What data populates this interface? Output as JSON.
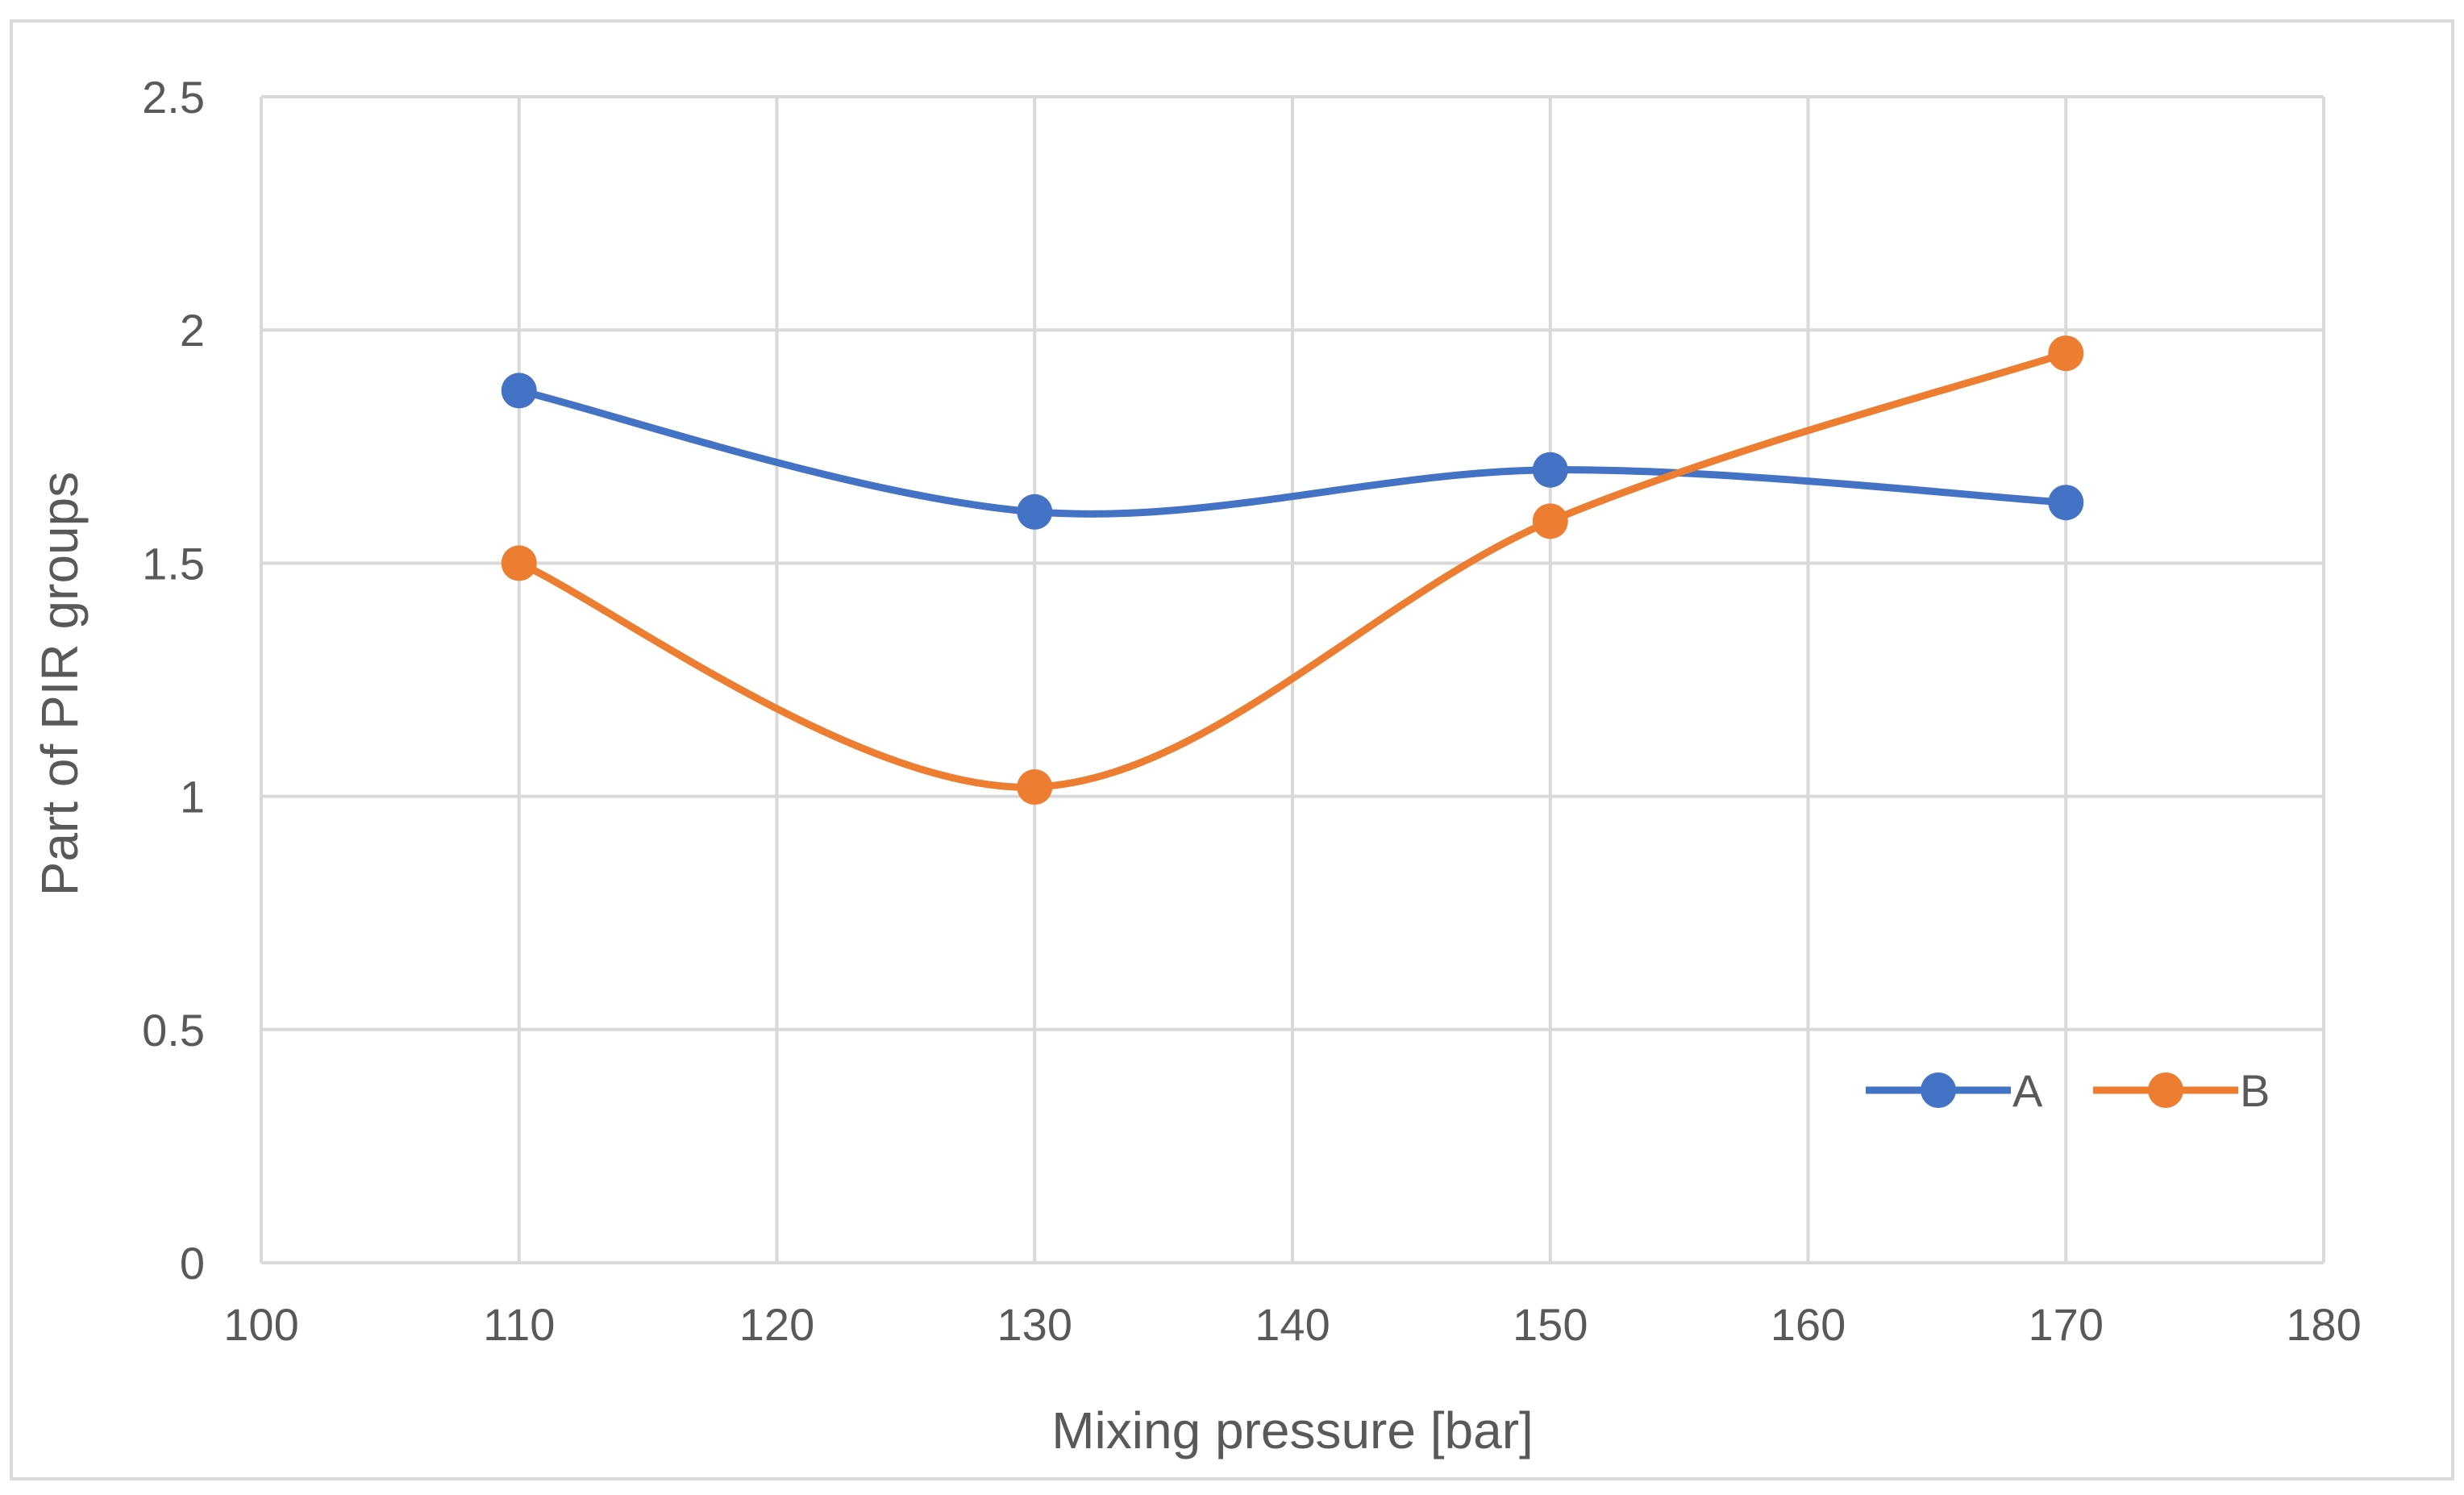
{
  "chart_data": {
    "type": "line",
    "title": "",
    "xlabel": "Mixing pressure [bar]",
    "ylabel": "Part of PIR groups",
    "xlim": [
      100,
      180
    ],
    "ylim": [
      0,
      2.5
    ],
    "x_ticks": [
      "100",
      "110",
      "120",
      "130",
      "140",
      "150",
      "160",
      "170",
      "180"
    ],
    "y_ticks": [
      "0",
      "0.5",
      "1",
      "1.5",
      "2",
      "2.5"
    ],
    "grid": true,
    "smooth": true,
    "legend_position": "bottom-right",
    "series": [
      {
        "name": "A",
        "color": "#4472C4",
        "x": [
          110,
          130,
          150,
          170
        ],
        "y": [
          1.87,
          1.61,
          1.7,
          1.63
        ]
      },
      {
        "name": "B",
        "color": "#ED7D31",
        "x": [
          110,
          130,
          150,
          170
        ],
        "y": [
          1.5,
          1.02,
          1.59,
          1.95
        ]
      }
    ]
  }
}
